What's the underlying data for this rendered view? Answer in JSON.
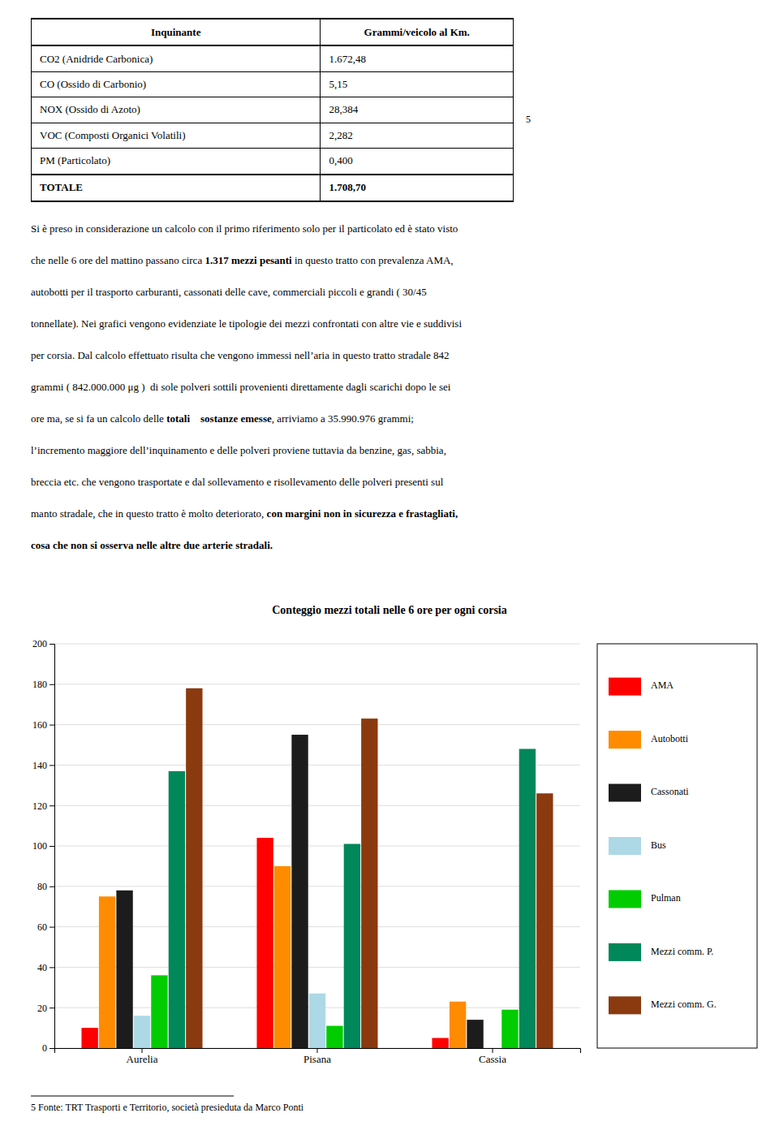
{
  "table": {
    "headers": [
      "Inquinante",
      "Grammi/veicolo al Km."
    ],
    "rows": [
      [
        "CO2 (Anidride Carbonica)",
        "1.672,48"
      ],
      [
        "CO (Ossido di Carbonio)",
        "5,15"
      ],
      [
        "NOX (Ossido di Azoto)",
        "28,384"
      ],
      [
        "VOC (Composti Organici Volatili)",
        "2,282"
      ],
      [
        "PM (Particolato)",
        "0,400"
      ],
      [
        "TOTALE",
        "1.708,70"
      ]
    ]
  },
  "footnote_ref": "5",
  "body_lines": [
    [
      {
        "text": "Si è preso in considerazione un calcolo con il primo riferimento solo per il particolato ed è stato visto",
        "bold": false
      }
    ],
    [
      {
        "text": "che nelle 6 ore del mattino passano circa ",
        "bold": false
      },
      {
        "text": "1.317 mezzi pesanti",
        "bold": true
      },
      {
        "text": " in questo tratto con prevalenza AMA,",
        "bold": false
      }
    ],
    [
      {
        "text": "autobotti per il trasporto carburanti, cassonati delle cave, commerciali piccoli e grandi ( 30/45",
        "bold": false
      }
    ],
    [
      {
        "text": "tonnellate). Nei grafici vengono evidenziate le tipologie dei mezzi confrontati con altre vie e suddivisi",
        "bold": false
      }
    ],
    [
      {
        "text": "per corsia. Dal calcolo effettuato risulta che vengono immessi nell’aria in questo tratto stradale 842",
        "bold": false
      }
    ],
    [
      {
        "text": "grammi ( 842.000.000 μg )  di sole polveri sottili provenienti direttamente dagli scarichi dopo le sei",
        "bold": false
      }
    ],
    [
      {
        "text": "ore ma, se si fa un calcolo delle ",
        "bold": false
      },
      {
        "text": "totali    sostanze emesse",
        "bold": true
      },
      {
        "text": ", arriviamo a 35.990.976 grammi;",
        "bold": false
      }
    ],
    [
      {
        "text": "l’incremento maggiore dell’inquinamento e delle polveri proviene tuttavia da benzine, gas, sabbia,",
        "bold": false
      }
    ],
    [
      {
        "text": "breccia etc. che vengono trasportate e dal sollevamento e risollevamento delle polveri presenti sul",
        "bold": false
      }
    ],
    [
      {
        "text": "manto stradale, che in questo tratto è molto deteriorato, ",
        "bold": false
      },
      {
        "text": "con margini non in sicurezza e frastagliati,",
        "bold": true
      }
    ],
    [
      {
        "text": "cosa che non si osserva nelle altre due arterie stradali.",
        "bold": true
      }
    ]
  ],
  "footnote": "5 Fonte: TRT Trasporti e Territorio, società presieduta da Marco Ponti",
  "chart_data": {
    "type": "bar",
    "title": "Conteggio mezzi totali nelle 6 ore per ogni corsia",
    "categories": [
      "Aurelia",
      "Pisana",
      "Cassia"
    ],
    "series": [
      {
        "name": "AMA",
        "color": "#FF0000",
        "values": [
          10,
          104,
          5
        ]
      },
      {
        "name": "Autobotti",
        "color": "#FF8C00",
        "values": [
          75,
          90,
          23
        ]
      },
      {
        "name": "Cassonati",
        "color": "#1C1C1C",
        "values": [
          78,
          155,
          14
        ]
      },
      {
        "name": "Bus",
        "color": "#ADD8E6",
        "values": [
          16,
          27,
          0
        ]
      },
      {
        "name": "Pulman",
        "color": "#00CC00",
        "values": [
          36,
          11,
          19
        ]
      },
      {
        "name": "Mezzi comm. P.",
        "color": "#00875A",
        "values": [
          137,
          101,
          148
        ]
      },
      {
        "name": "Mezzi comm. G.",
        "color": "#8B3A10",
        "values": [
          178,
          163,
          126
        ]
      }
    ],
    "ylim": [
      0,
      200
    ],
    "yticks": [
      0,
      20,
      40,
      60,
      80,
      100,
      120,
      140,
      160,
      180,
      200
    ],
    "grid": true,
    "legend": "right"
  }
}
